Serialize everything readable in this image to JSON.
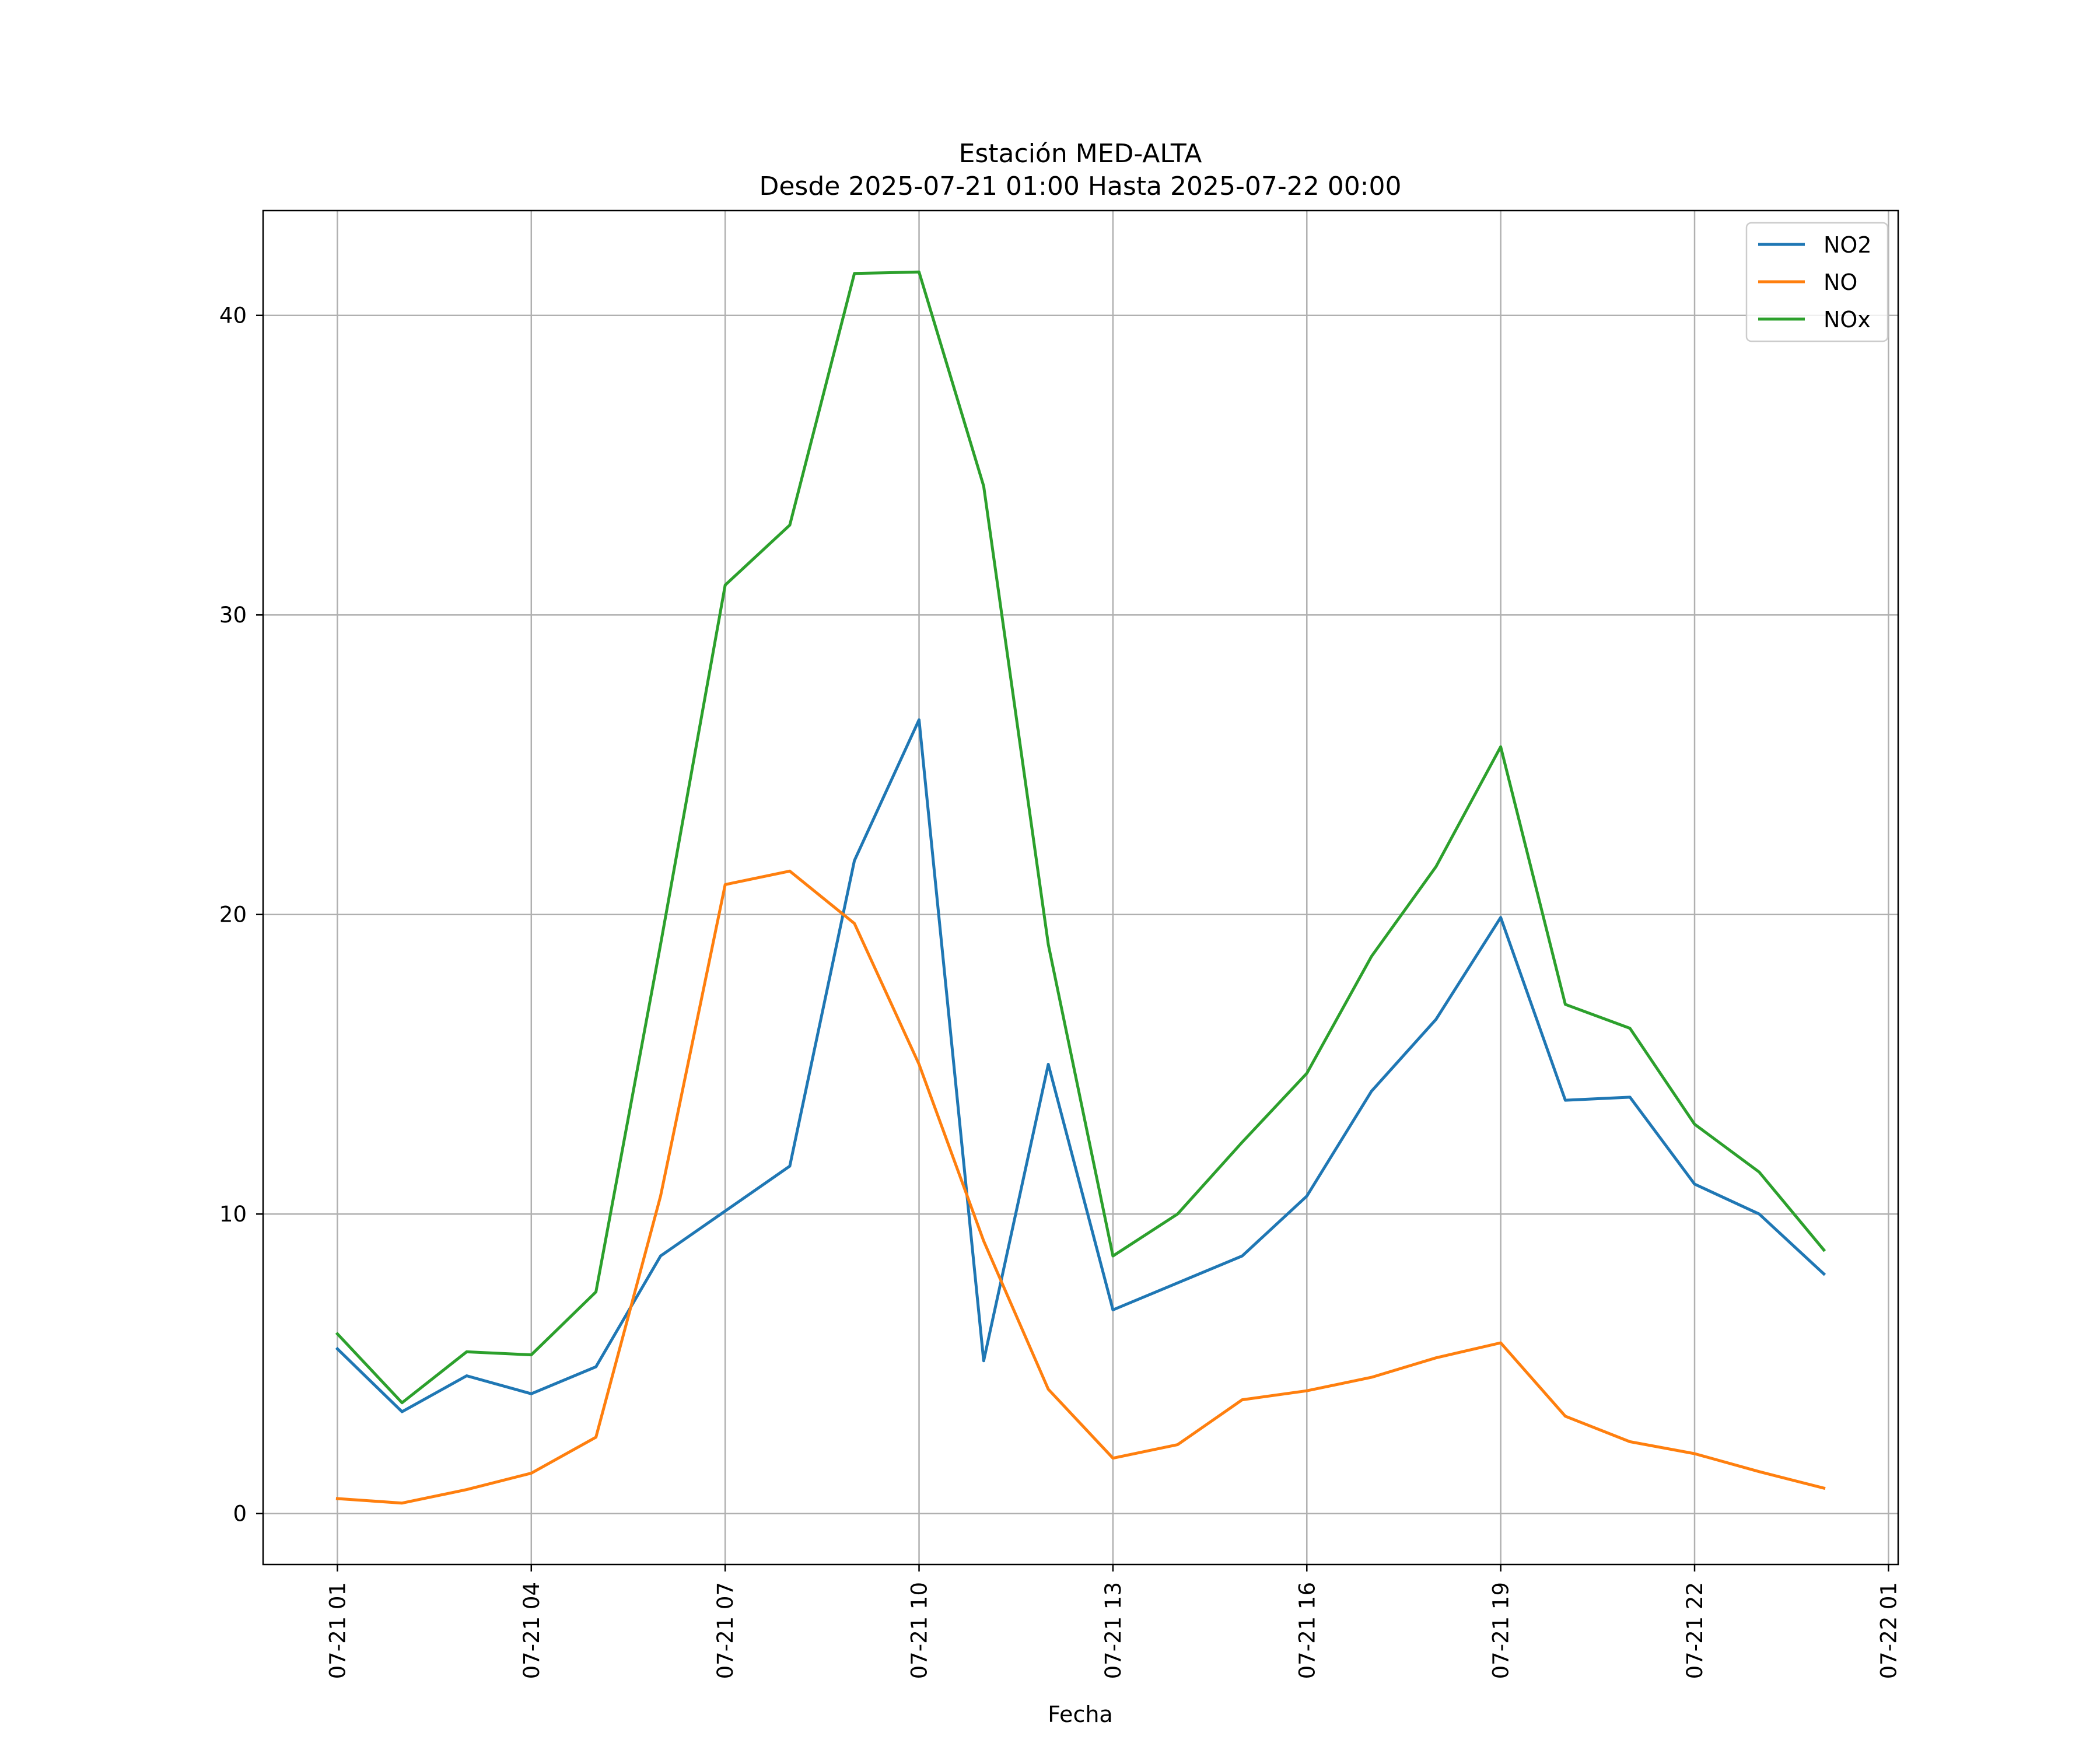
{
  "chart_data": {
    "type": "line",
    "title": "Estación MED-ALTA",
    "subtitle": "Desde 2025-07-21 01:00 Hasta 2025-07-22 00:00",
    "xlabel": "Fecha",
    "ylabel": "",
    "x_tick_labels": [
      "07-21 01",
      "07-21 04",
      "07-21 07",
      "07-21 10",
      "07-21 13",
      "07-21 16",
      "07-21 19",
      "07-21 22",
      "07-22 01"
    ],
    "x_tick_hours": [
      1,
      4,
      7,
      10,
      13,
      16,
      19,
      22,
      25
    ],
    "x_hours": [
      1,
      2,
      3,
      4,
      5,
      6,
      7,
      8,
      9,
      10,
      11,
      12,
      13,
      14,
      15,
      16,
      17,
      18,
      19,
      20,
      21,
      22,
      23,
      24
    ],
    "xlim": [
      -0.15,
      25.15
    ],
    "ylim": [
      -1.7,
      43.5
    ],
    "y_ticks": [
      0,
      10,
      20,
      30,
      40
    ],
    "grid": true,
    "legend": "top-right",
    "series": [
      {
        "name": "NO2",
        "color": "#1f77b4",
        "values": [
          5.5,
          3.4,
          4.6,
          4.0,
          4.9,
          8.6,
          10.1,
          11.6,
          21.8,
          26.5,
          5.1,
          15.0,
          6.8,
          7.7,
          8.6,
          10.6,
          14.1,
          16.5,
          19.9,
          13.8,
          13.9,
          11.0,
          10.0,
          8.0
        ]
      },
      {
        "name": "NO",
        "color": "#ff7f0e",
        "values": [
          0.5,
          0.35,
          0.8,
          1.35,
          2.55,
          10.6,
          21.0,
          21.45,
          19.7,
          15.0,
          9.1,
          4.15,
          1.85,
          2.3,
          3.8,
          4.1,
          4.55,
          5.2,
          5.7,
          3.25,
          2.4,
          2.0,
          1.4,
          0.85
        ]
      },
      {
        "name": "NOx",
        "color": "#2ca02c",
        "values": [
          6.0,
          3.7,
          5.4,
          5.3,
          7.4,
          19.0,
          31.0,
          33.0,
          41.4,
          41.45,
          34.3,
          19.0,
          8.6,
          10.0,
          12.4,
          14.7,
          18.6,
          21.6,
          25.6,
          17.0,
          16.2,
          13.0,
          11.4,
          8.8
        ]
      }
    ]
  }
}
